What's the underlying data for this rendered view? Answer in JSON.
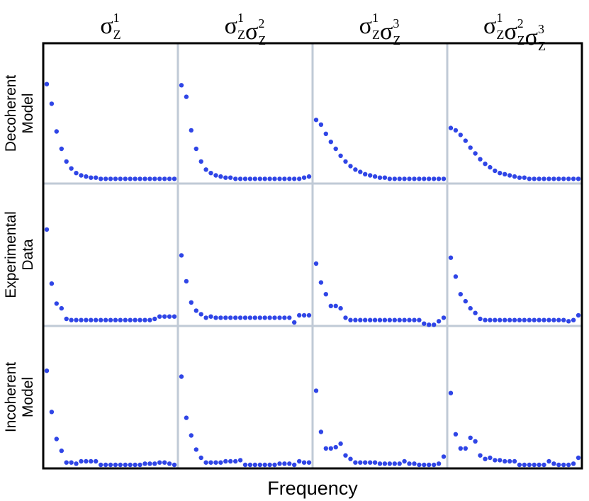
{
  "chart_data": {
    "type": "scatter",
    "columns": [
      {
        "base": "σ",
        "parts": [
          [
            "Z",
            "1"
          ]
        ]
      },
      {
        "base": "σ",
        "parts": [
          [
            "Z",
            "1"
          ],
          [
            "Z",
            "2"
          ]
        ]
      },
      {
        "base": "σ",
        "parts": [
          [
            "Z",
            "1"
          ],
          [
            "Z",
            "3"
          ]
        ]
      },
      {
        "base": "σ",
        "parts": [
          [
            "Z",
            "1"
          ],
          [
            "Z",
            "2"
          ],
          [
            "Z",
            "3"
          ]
        ]
      }
    ],
    "rows": [
      {
        "line1": "Decoherent",
        "line2": "Model"
      },
      {
        "line1": "Experimental",
        "line2": "Data"
      },
      {
        "line1": "Incoherent",
        "line2": "Model"
      }
    ],
    "xlabel": "Frequency",
    "ylabel": "",
    "grid": true,
    "marker_color": "#2f45e6",
    "ylim": [
      0,
      1
    ],
    "panels": [
      [
        [
          0.83,
          0.66,
          0.42,
          0.27,
          0.16,
          0.1,
          0.06,
          0.04,
          0.03,
          0.02,
          0.02,
          0.01,
          0.01,
          0.01,
          0.01,
          0.01,
          0.01,
          0.01,
          0.01,
          0.01,
          0.01,
          0.01,
          0.01,
          0.01,
          0.01,
          0.01,
          0.01
        ],
        [
          0.82,
          0.72,
          0.43,
          0.27,
          0.16,
          0.09,
          0.06,
          0.04,
          0.03,
          0.02,
          0.02,
          0.01,
          0.01,
          0.01,
          0.01,
          0.01,
          0.01,
          0.01,
          0.01,
          0.01,
          0.01,
          0.01,
          0.01,
          0.01,
          0.01,
          0.02,
          0.03
        ],
        [
          0.52,
          0.48,
          0.4,
          0.33,
          0.27,
          0.21,
          0.16,
          0.12,
          0.09,
          0.07,
          0.05,
          0.04,
          0.03,
          0.02,
          0.02,
          0.01,
          0.01,
          0.01,
          0.01,
          0.01,
          0.01,
          0.01,
          0.01,
          0.01,
          0.01,
          0.01,
          0.01
        ],
        [
          0.45,
          0.43,
          0.39,
          0.34,
          0.28,
          0.23,
          0.18,
          0.14,
          0.11,
          0.08,
          0.06,
          0.05,
          0.04,
          0.03,
          0.02,
          0.02,
          0.01,
          0.01,
          0.01,
          0.01,
          0.01,
          0.01,
          0.01,
          0.01,
          0.01,
          0.01,
          0.01
        ]
      ],
      [
        [
          0.79,
          0.33,
          0.16,
          0.12,
          0.03,
          0.02,
          0.02,
          0.02,
          0.02,
          0.02,
          0.02,
          0.02,
          0.02,
          0.02,
          0.02,
          0.02,
          0.02,
          0.02,
          0.02,
          0.02,
          0.02,
          0.02,
          0.03,
          0.05,
          0.05,
          0.05,
          0.05
        ],
        [
          0.57,
          0.35,
          0.17,
          0.1,
          0.07,
          0.04,
          0.05,
          0.04,
          0.04,
          0.04,
          0.04,
          0.04,
          0.04,
          0.04,
          0.04,
          0.04,
          0.04,
          0.04,
          0.04,
          0.04,
          0.04,
          0.04,
          0.04,
          0.0,
          0.06,
          0.06,
          0.06
        ],
        [
          0.5,
          0.34,
          0.24,
          0.14,
          0.14,
          0.12,
          0.04,
          0.02,
          0.02,
          0.02,
          0.02,
          0.02,
          0.02,
          0.02,
          0.02,
          0.02,
          0.02,
          0.02,
          0.02,
          0.02,
          0.02,
          0.02,
          -0.01,
          -0.02,
          -0.02,
          0.01,
          0.04
        ],
        [
          0.55,
          0.39,
          0.24,
          0.18,
          0.12,
          0.08,
          0.03,
          0.02,
          0.02,
          0.02,
          0.02,
          0.02,
          0.02,
          0.02,
          0.02,
          0.02,
          0.02,
          0.02,
          0.02,
          0.02,
          0.02,
          0.02,
          0.02,
          0.02,
          0.01,
          0.02,
          0.06
        ]
      ],
      [
        [
          0.8,
          0.45,
          0.22,
          0.12,
          0.02,
          0.02,
          0.01,
          0.03,
          0.03,
          0.03,
          0.03,
          0.0,
          0.0,
          0.0,
          0.0,
          0.0,
          0.0,
          0.0,
          0.0,
          0.0,
          0.01,
          0.01,
          0.01,
          0.02,
          0.02,
          0.01,
          0.0
        ],
        [
          0.75,
          0.4,
          0.25,
          0.13,
          0.06,
          0.02,
          0.02,
          0.02,
          0.02,
          0.03,
          0.03,
          0.03,
          0.04,
          0.0,
          0.0,
          0.0,
          0.0,
          0.0,
          0.0,
          0.0,
          0.01,
          0.01,
          0.01,
          0.0,
          0.03,
          0.02,
          0.02
        ],
        [
          0.63,
          0.28,
          0.14,
          0.14,
          0.15,
          0.18,
          0.08,
          0.05,
          0.02,
          0.02,
          0.02,
          0.02,
          0.02,
          0.01,
          0.01,
          0.01,
          0.01,
          0.01,
          0.03,
          0.01,
          0.01,
          0.0,
          0.0,
          0.0,
          0.0,
          0.01,
          0.07
        ],
        [
          0.61,
          0.26,
          0.14,
          0.14,
          0.23,
          0.2,
          0.08,
          0.05,
          0.06,
          0.04,
          0.04,
          0.03,
          0.03,
          0.03,
          0.0,
          0.0,
          0.0,
          0.0,
          0.0,
          0.0,
          0.03,
          0.01,
          0.0,
          0.0,
          0.0,
          0.01,
          0.06
        ]
      ]
    ]
  }
}
